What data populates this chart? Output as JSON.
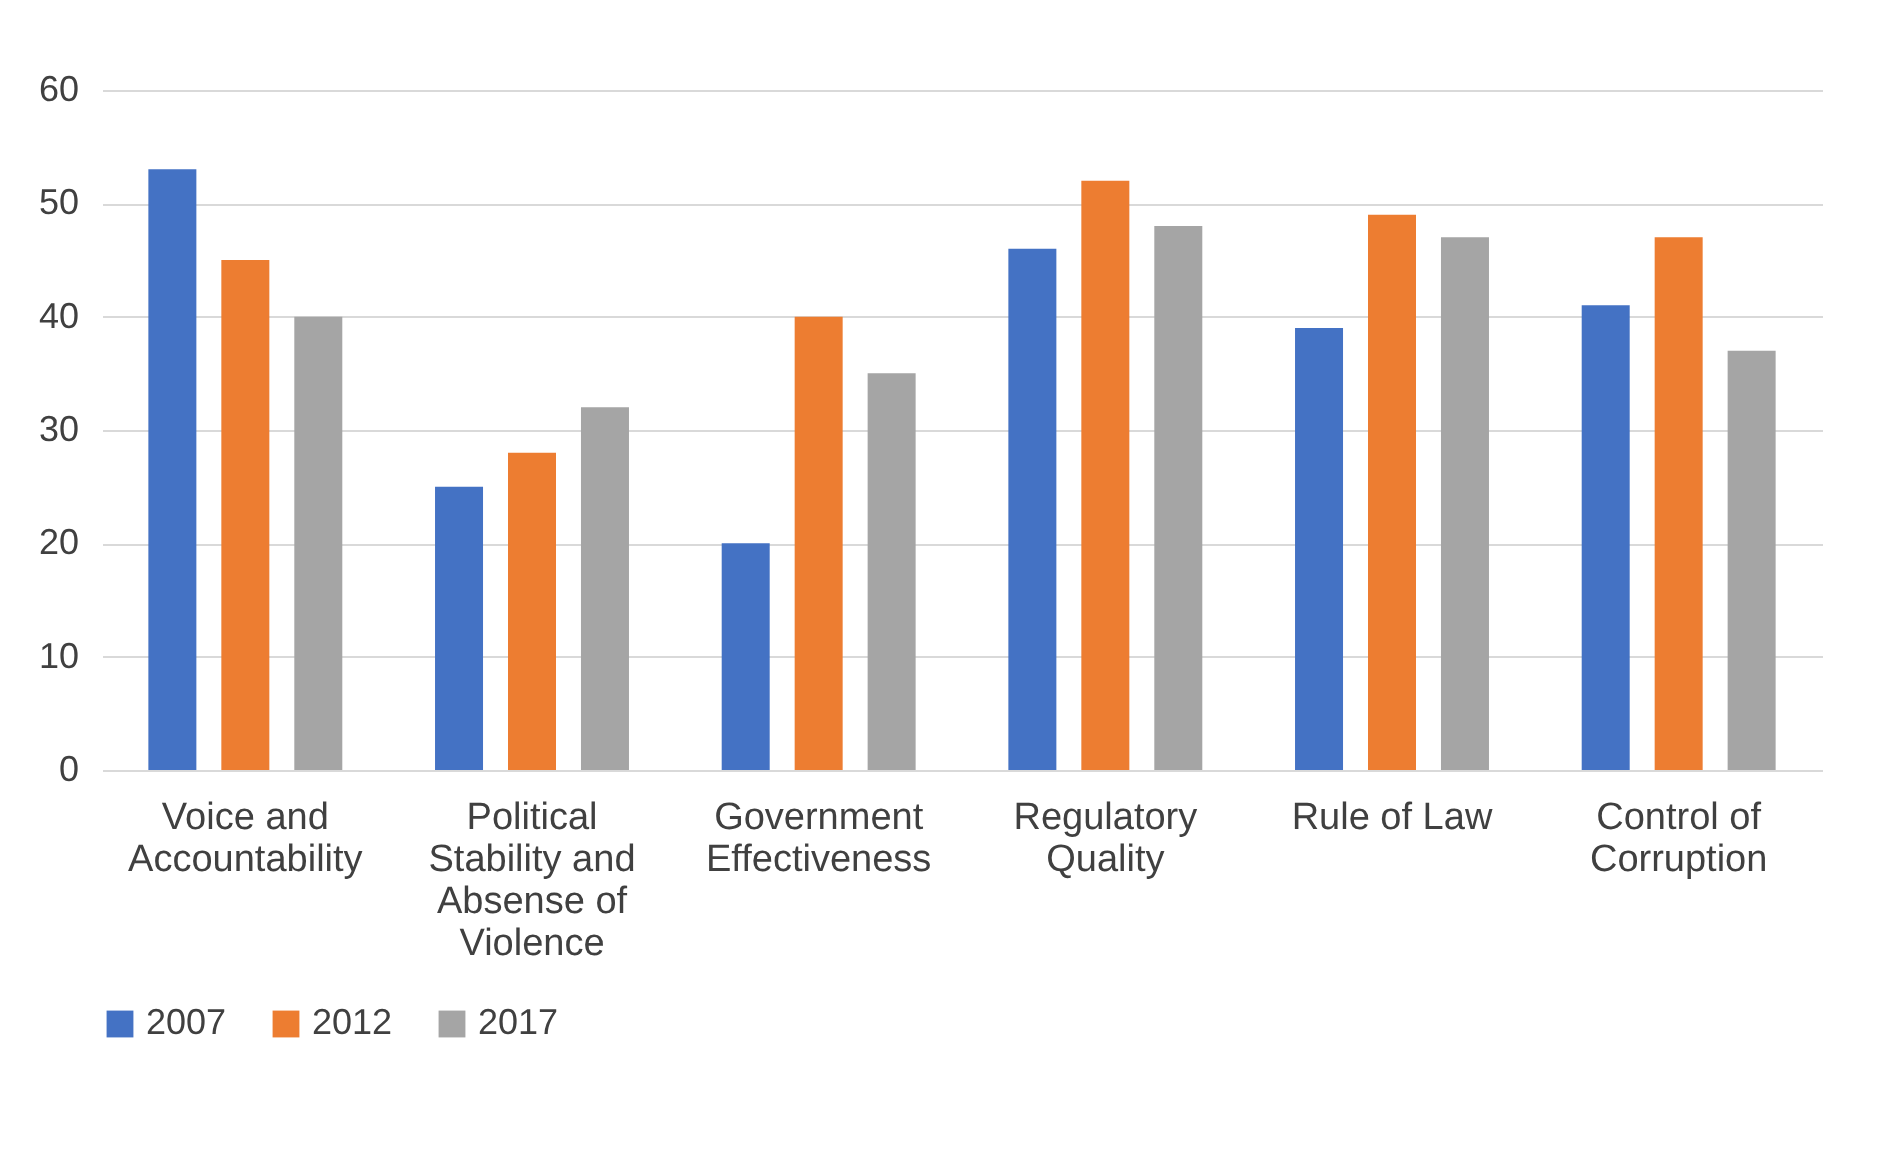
{
  "chart_data": {
    "type": "bar",
    "categories": [
      "Voice and Accountability",
      "Political Stability and Absense of Violence",
      "Government Effectiveness",
      "Regulatory Quality",
      "Rule of Law",
      "Control of Corruption"
    ],
    "series": [
      {
        "name": "2007",
        "color": "#4472c4",
        "values": [
          53,
          25,
          20,
          46,
          39,
          41
        ]
      },
      {
        "name": "2012",
        "color": "#ed7d31",
        "values": [
          45,
          28,
          40,
          52,
          49,
          47
        ]
      },
      {
        "name": "2017",
        "color": "#a5a5a5",
        "values": [
          40,
          32,
          35,
          48,
          47,
          37
        ]
      }
    ],
    "ylim": [
      0,
      60
    ],
    "yticks": [
      0,
      10,
      20,
      30,
      40,
      50,
      60
    ],
    "grid": "y",
    "legend": "bottom"
  }
}
